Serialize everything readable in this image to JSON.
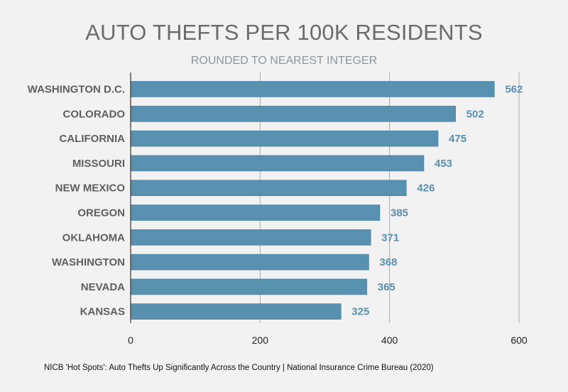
{
  "chart_data": {
    "type": "bar",
    "orientation": "horizontal",
    "title": "AUTO THEFTS PER 100K RESIDENTS",
    "subtitle": "ROUNDED TO NEAREST INTEGER",
    "categories": [
      "WASHINGTON D.C.",
      "COLORADO",
      "CALIFORNIA",
      "MISSOURI",
      "NEW MEXICO",
      "OREGON",
      "OKLAHOMA",
      "WASHINGTON",
      "NEVADA",
      "KANSAS"
    ],
    "values": [
      562,
      502,
      475,
      453,
      426,
      385,
      371,
      368,
      365,
      325
    ],
    "xlim": [
      0,
      600
    ],
    "xticks": [
      0,
      200,
      400,
      600
    ],
    "xlabel": "",
    "ylabel": "",
    "grid": "vertical",
    "bar_color": "#5890b0",
    "value_label_color": "#5a8fb0",
    "source": "NICB 'Hot Spots': Auto Thefts Up Significantly Across the Country | National Insurance Crime Bureau (2020)"
  }
}
